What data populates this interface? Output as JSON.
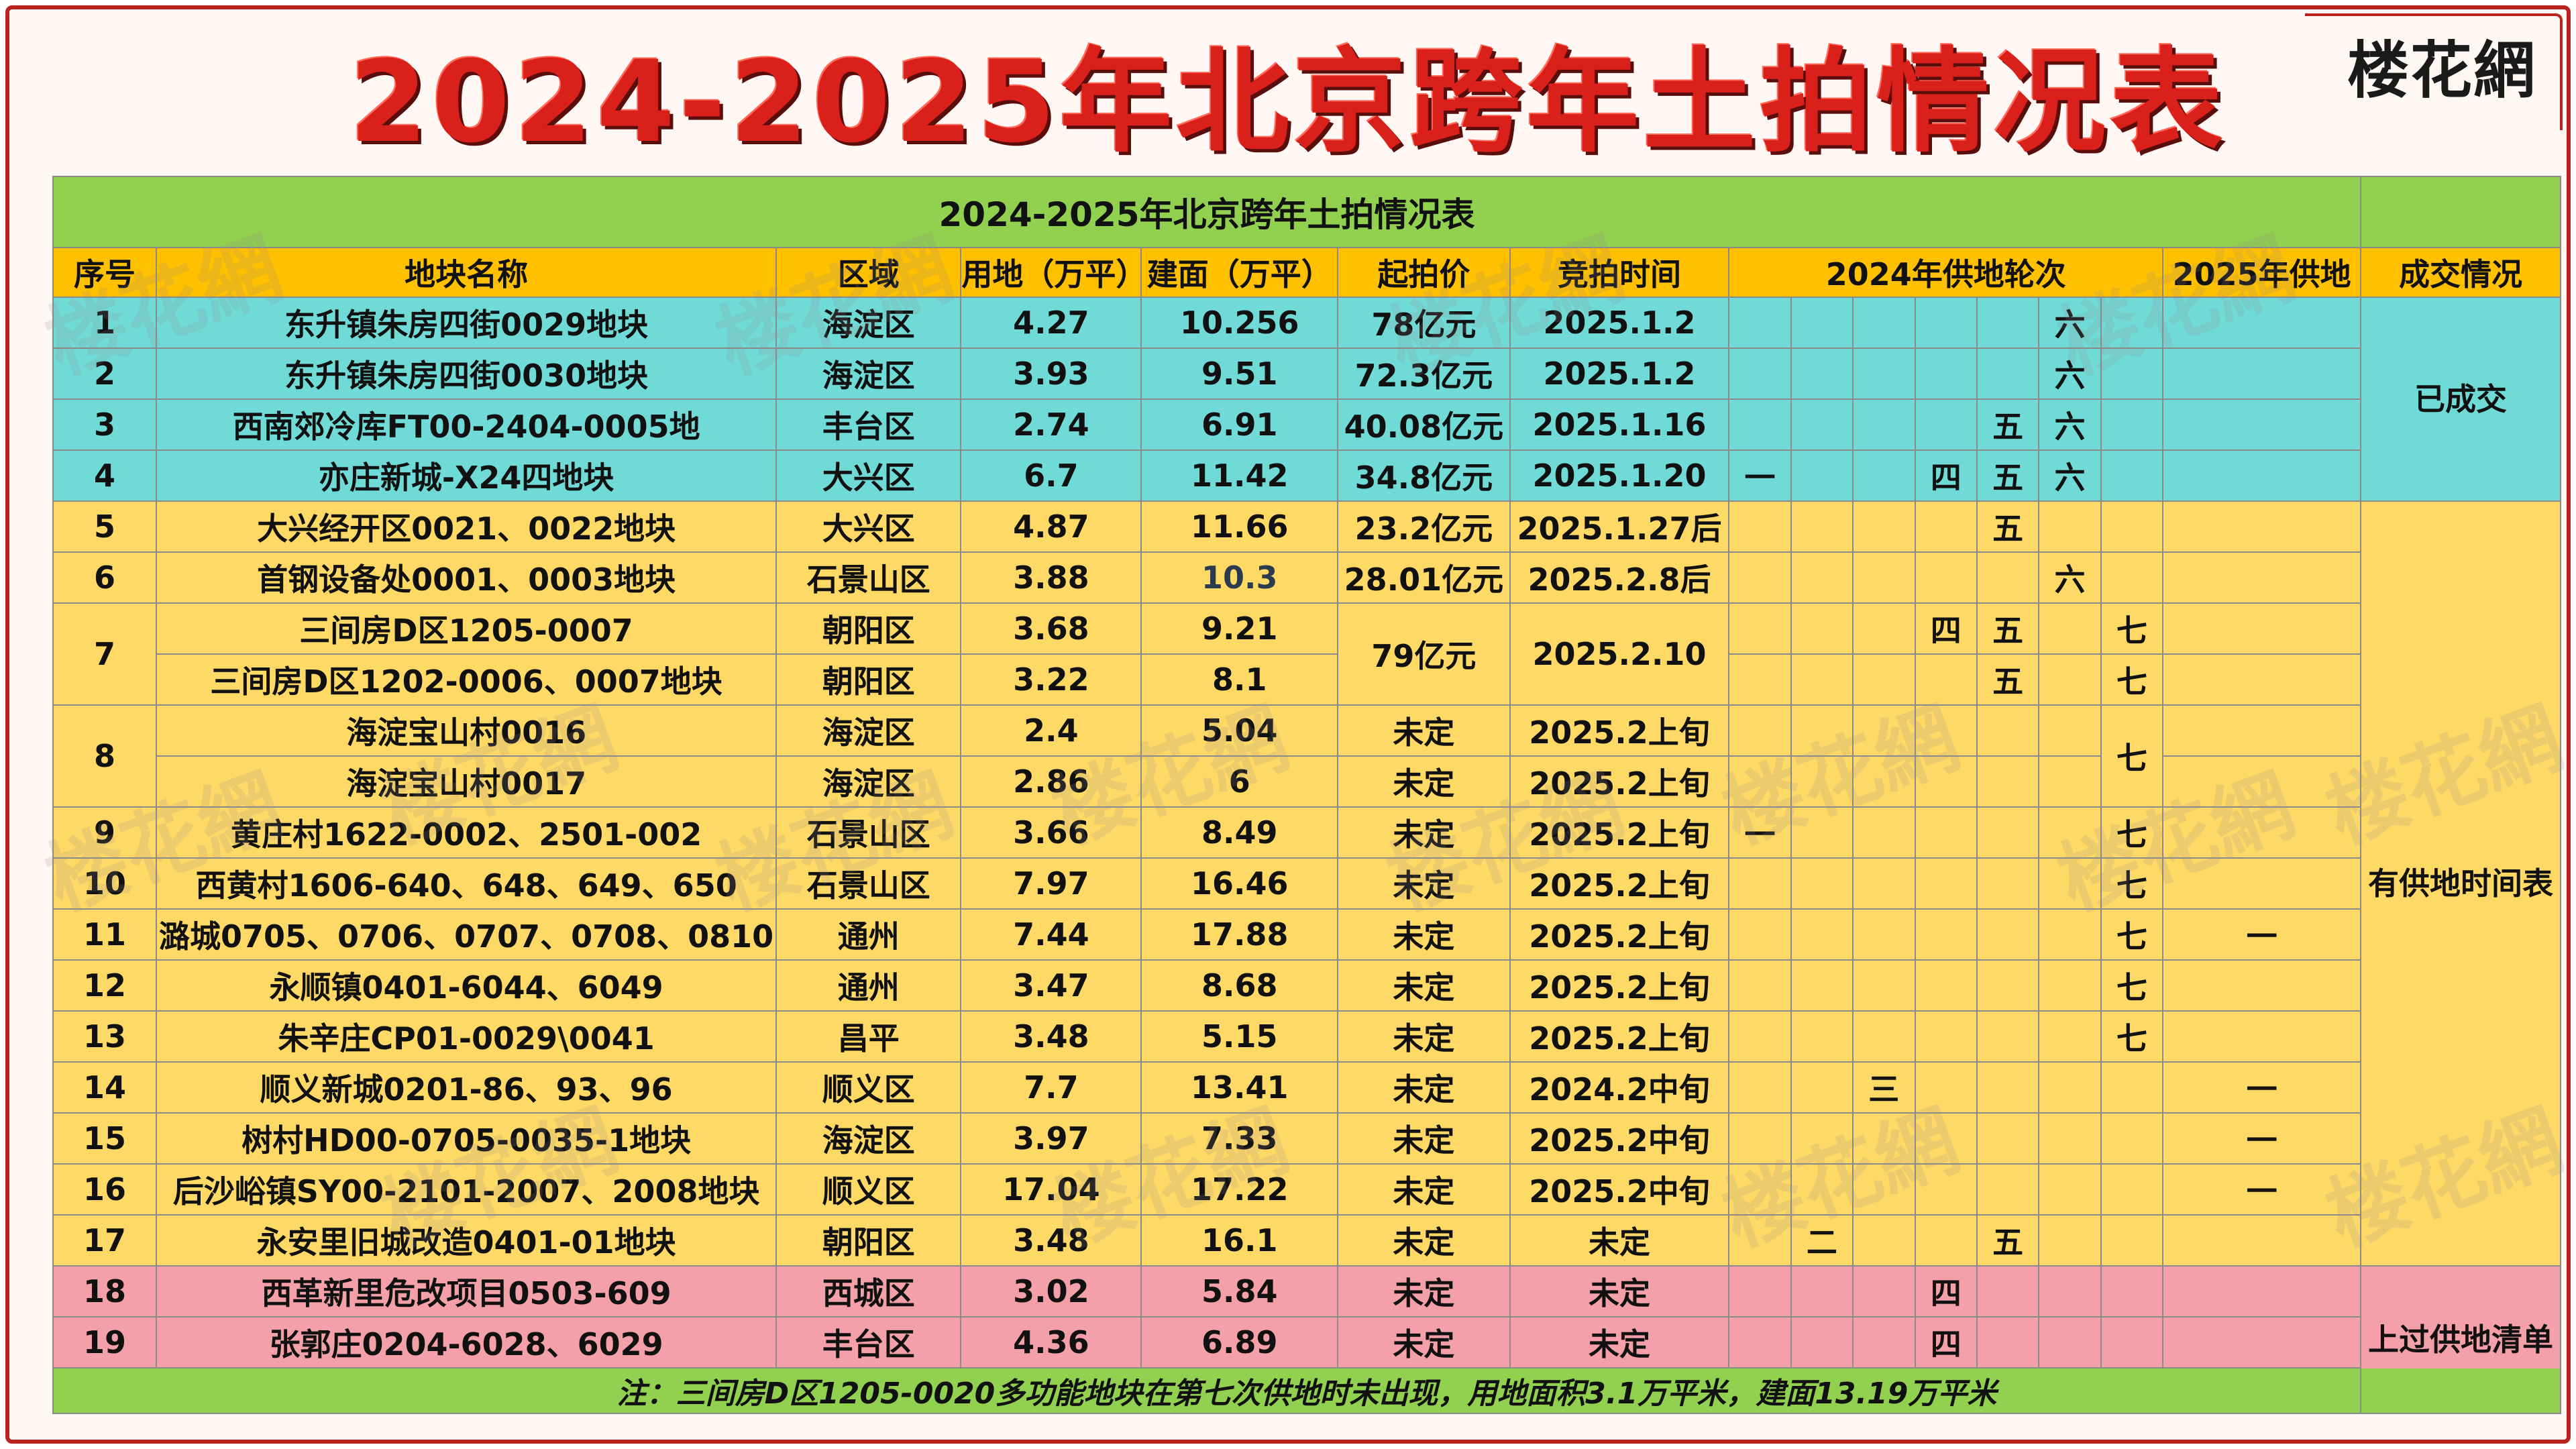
{
  "brand": {
    "logo_text": "楼花網"
  },
  "page_title": "2024-2025年北京跨年土拍情况表",
  "table": {
    "caption": "2024-2025年北京跨年土拍情况表",
    "headers": {
      "no": "序号",
      "name": "地块名称",
      "district": "区域",
      "land_area": "用地（万平）",
      "build_area": "建面（万平）",
      "start_price": "起拍价",
      "auction_time": "竞拍时间",
      "rounds_2024": "2024年供地轮次",
      "supply_2025": "2025年供地",
      "status": "成交情况"
    },
    "rows": [
      {
        "no": "1",
        "name": "东升镇朱房四街0029地块",
        "district": "海淀区",
        "land": "4.27",
        "build": "10.256",
        "price": "78亿元",
        "time": "2025.1.2",
        "r": [
          "",
          "",
          "",
          "",
          "",
          "六",
          ""
        ],
        "s25": ""
      },
      {
        "no": "2",
        "name": "东升镇朱房四街0030地块",
        "district": "海淀区",
        "land": "3.93",
        "build": "9.51",
        "price": "72.3亿元",
        "time": "2025.1.2",
        "r": [
          "",
          "",
          "",
          "",
          "",
          "六",
          ""
        ],
        "s25": ""
      },
      {
        "no": "3",
        "name": "西南郊冷库FT00-2404-0005地",
        "district": "丰台区",
        "land": "2.74",
        "build": "6.91",
        "price": "40.08亿元",
        "time": "2025.1.16",
        "r": [
          "",
          "",
          "",
          "",
          "五",
          "六",
          ""
        ],
        "s25": ""
      },
      {
        "no": "4",
        "name": "亦庄新城-X24四地块",
        "district": "大兴区",
        "land": "6.7",
        "build": "11.42",
        "price": "34.8亿元",
        "time": "2025.1.20",
        "r": [
          "一",
          "",
          "",
          "四",
          "五",
          "六",
          ""
        ],
        "s25": ""
      },
      {
        "no": "5",
        "name": "大兴经开区0021、0022地块",
        "district": "大兴区",
        "land": "4.87",
        "build": "11.66",
        "price": "23.2亿元",
        "time": "2025.1.27后",
        "r": [
          "",
          "",
          "",
          "",
          "五",
          "",
          ""
        ],
        "s25": ""
      },
      {
        "no": "6",
        "name": "首钢设备处0001、0003地块",
        "district": "石景山区",
        "land": "3.88",
        "build": "10.3",
        "price": "28.01亿元",
        "time": "2025.2.8后",
        "r": [
          "",
          "",
          "",
          "",
          "",
          "六",
          ""
        ],
        "s25": ""
      },
      {
        "no": "7",
        "name": "三间房D区1205-0007",
        "district": "朝阳区",
        "land": "3.68",
        "build": "9.21",
        "price": "79亿元",
        "time": "2025.2.10",
        "r": [
          "",
          "",
          "",
          "四",
          "五",
          "",
          "七"
        ],
        "s25": ""
      },
      {
        "no": "",
        "name": "三间房D区1202-0006、0007地块",
        "district": "朝阳区",
        "land": "3.22",
        "build": "8.1",
        "price": "",
        "time": "",
        "r": [
          "",
          "",
          "",
          "",
          "五",
          "",
          "七"
        ],
        "s25": ""
      },
      {
        "no": "8",
        "name": "海淀宝山村0016",
        "district": "海淀区",
        "land": "2.4",
        "build": "5.04",
        "price": "未定",
        "time": "2025.2上旬",
        "r": [
          "",
          "",
          "",
          "",
          "",
          "",
          "七"
        ],
        "s25": ""
      },
      {
        "no": "",
        "name": "海淀宝山村0017",
        "district": "海淀区",
        "land": "2.86",
        "build": "6",
        "price": "未定",
        "time": "2025.2上旬",
        "r": [
          "",
          "",
          "",
          "",
          "",
          "",
          ""
        ],
        "s25": ""
      },
      {
        "no": "9",
        "name": "黄庄村1622-0002、2501-002",
        "district": "石景山区",
        "land": "3.66",
        "build": "8.49",
        "price": "未定",
        "time": "2025.2上旬",
        "r": [
          "一",
          "",
          "",
          "",
          "",
          "",
          "七"
        ],
        "s25": ""
      },
      {
        "no": "10",
        "name": "西黄村1606-640、648、649、650",
        "district": "石景山区",
        "land": "7.97",
        "build": "16.46",
        "price": "未定",
        "time": "2025.2上旬",
        "r": [
          "",
          "",
          "",
          "",
          "",
          "",
          "七"
        ],
        "s25": ""
      },
      {
        "no": "11",
        "name": "潞城0705、0706、0707、0708、0810",
        "district": "通州",
        "land": "7.44",
        "build": "17.88",
        "price": "未定",
        "time": "2025.2上旬",
        "r": [
          "",
          "",
          "",
          "",
          "",
          "",
          "七"
        ],
        "s25": "一"
      },
      {
        "no": "12",
        "name": "永顺镇0401-6044、6049",
        "district": "通州",
        "land": "3.47",
        "build": "8.68",
        "price": "未定",
        "time": "2025.2上旬",
        "r": [
          "",
          "",
          "",
          "",
          "",
          "",
          "七"
        ],
        "s25": ""
      },
      {
        "no": "13",
        "name": "朱辛庄CP01-0029\\0041",
        "district": "昌平",
        "land": "3.48",
        "build": "5.15",
        "price": "未定",
        "time": "2025.2上旬",
        "r": [
          "",
          "",
          "",
          "",
          "",
          "",
          "七"
        ],
        "s25": ""
      },
      {
        "no": "14",
        "name": "顺义新城0201-86、93、96",
        "district": "顺义区",
        "land": "7.7",
        "build": "13.41",
        "price": "未定",
        "time": "2024.2中旬",
        "r": [
          "",
          "",
          "三",
          "",
          "",
          "",
          ""
        ],
        "s25": "一"
      },
      {
        "no": "15",
        "name": "树村HD00-0705-0035-1地块",
        "district": "海淀区",
        "land": "3.97",
        "build": "7.33",
        "price": "未定",
        "time": "2025.2中旬",
        "r": [
          "",
          "",
          "",
          "",
          "",
          "",
          ""
        ],
        "s25": "一"
      },
      {
        "no": "16",
        "name": "后沙峪镇SY00-2101-2007、2008地块",
        "district": "顺义区",
        "land": "17.04",
        "build": "17.22",
        "price": "未定",
        "time": "2025.2中旬",
        "r": [
          "",
          "",
          "",
          "",
          "",
          "",
          ""
        ],
        "s25": "一"
      },
      {
        "no": "17",
        "name": "永安里旧城改造0401-01地块",
        "district": "朝阳区",
        "land": "3.48",
        "build": "16.1",
        "price": "未定",
        "time": "未定",
        "r": [
          "",
          "二",
          "",
          "",
          "五",
          "",
          ""
        ],
        "s25": ""
      },
      {
        "no": "18",
        "name": "西革新里危改项目0503-609",
        "district": "西城区",
        "land": "3.02",
        "build": "5.84",
        "price": "未定",
        "time": "未定",
        "r": [
          "",
          "",
          "",
          "四",
          "",
          "",
          ""
        ],
        "s25": ""
      },
      {
        "no": "19",
        "name": "张郭庄0204-6028、6029",
        "district": "丰台区",
        "land": "4.36",
        "build": "6.89",
        "price": "未定",
        "time": "未定",
        "r": [
          "",
          "",
          "",
          "四",
          "",
          "",
          ""
        ],
        "s25": ""
      }
    ],
    "status_groups": {
      "sold": "已成交",
      "scheduled": "有供地时间表",
      "listed": "上过供地清单"
    },
    "note": "注：三间房D区1205-0020多功能地块在第七次供地时未出现，用地面积3.1万平米，建面13.19万平米"
  },
  "watermark_text": "楼花網",
  "colors": {
    "title_red": "#d9201b",
    "header_orange": "#ffc000",
    "caption_green": "#92d050",
    "sold_cyan": "#70dbd6",
    "scheduled_yellow": "#ffd966",
    "listed_pink": "#f4a0a8"
  }
}
